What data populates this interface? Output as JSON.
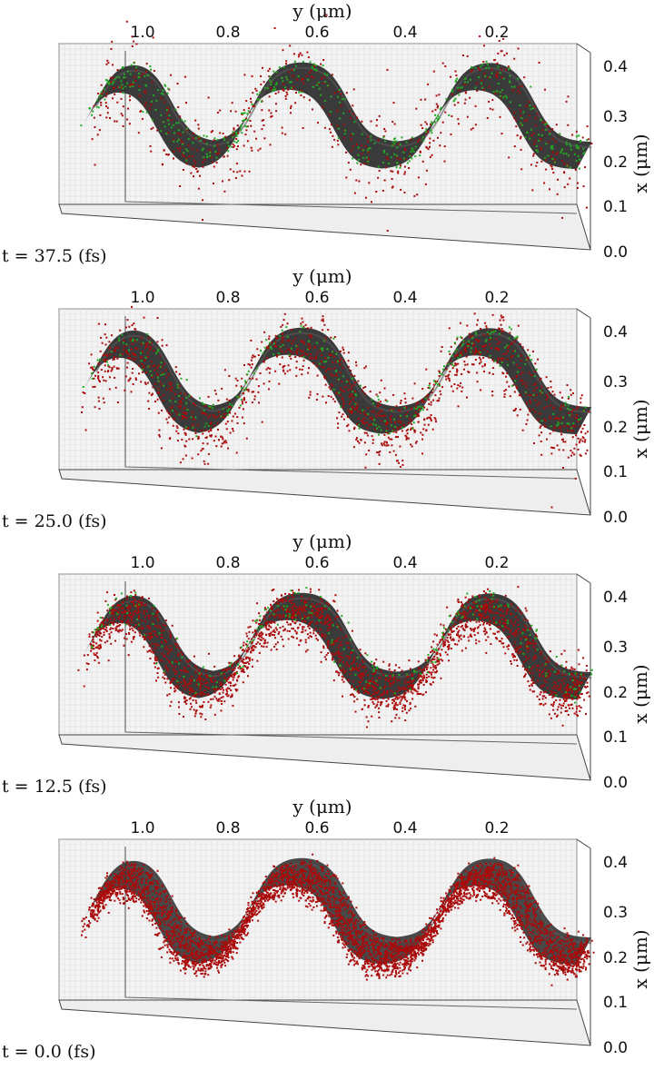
{
  "chart_data": [
    {
      "type": "scatter",
      "time_label": "t = 37.5 (fs)",
      "y_axis_label": "y (μm)",
      "x_axis_label": "x (μm)",
      "y_ticks": [
        "1.0",
        "0.8",
        "0.6",
        "0.4",
        "0.2"
      ],
      "x_ticks": [
        "0.4",
        "0.3",
        "0.2",
        "0.1",
        "0.0"
      ],
      "xlim": [
        0.0,
        0.42
      ],
      "ylim": [
        0.0,
        1.15
      ],
      "surface": {
        "low": 0.15,
        "high": 0.34,
        "steps_y": [
          0.08,
          0.18,
          0.28,
          0.48,
          0.58,
          0.78,
          0.88,
          1.08,
          1.15
        ]
      },
      "green_count": 420,
      "red_count": 650,
      "red_spread": 0.09
    },
    {
      "type": "scatter",
      "time_label": "t = 25.0 (fs)",
      "y_axis_label": "y (μm)",
      "x_axis_label": "x (μm)",
      "y_ticks": [
        "1.0",
        "0.8",
        "0.6",
        "0.4",
        "0.2"
      ],
      "x_ticks": [
        "0.4",
        "0.3",
        "0.2",
        "0.1",
        "0.0"
      ],
      "xlim": [
        0.0,
        0.42
      ],
      "ylim": [
        0.0,
        1.15
      ],
      "surface": {
        "low": 0.15,
        "high": 0.34,
        "steps_y": [
          0.08,
          0.18,
          0.28,
          0.48,
          0.58,
          0.78,
          0.88,
          1.08,
          1.15
        ]
      },
      "green_count": 280,
      "red_count": 1300,
      "red_spread": 0.06
    },
    {
      "type": "scatter",
      "time_label": "t = 12.5 (fs)",
      "y_axis_label": "y (μm)",
      "x_axis_label": "x (μm)",
      "y_ticks": [
        "1.0",
        "0.8",
        "0.6",
        "0.4",
        "0.2"
      ],
      "x_ticks": [
        "0.4",
        "0.3",
        "0.2",
        "0.1",
        "0.0"
      ],
      "xlim": [
        0.0,
        0.42
      ],
      "ylim": [
        0.0,
        1.15
      ],
      "surface": {
        "low": 0.15,
        "high": 0.34,
        "steps_y": [
          0.08,
          0.18,
          0.28,
          0.48,
          0.58,
          0.78,
          0.88,
          1.08,
          1.15
        ]
      },
      "green_count": 220,
      "red_count": 2200,
      "red_spread": 0.035
    },
    {
      "type": "scatter",
      "time_label": "t = 0.0 (fs)",
      "y_axis_label": "y (μm)",
      "x_axis_label": "x (μm)",
      "y_ticks": [
        "1.0",
        "0.8",
        "0.6",
        "0.4",
        "0.2"
      ],
      "x_ticks": [
        "0.4",
        "0.3",
        "0.2",
        "0.1",
        "0.0"
      ],
      "xlim": [
        0.0,
        0.42
      ],
      "ylim": [
        0.0,
        1.15
      ],
      "surface": {
        "low": 0.15,
        "high": 0.34,
        "steps_y": [
          0.08,
          0.18,
          0.28,
          0.48,
          0.58,
          0.78,
          0.88,
          1.08,
          1.15
        ]
      },
      "green_count": 0,
      "red_count": 4200,
      "red_spread": 0.015
    }
  ],
  "colors": {
    "surface": "#2a2a2a",
    "green_particles": "#22aa22",
    "red_particles": "#aa0a0a",
    "grid": "#d8d8d8",
    "box": "#444444"
  }
}
